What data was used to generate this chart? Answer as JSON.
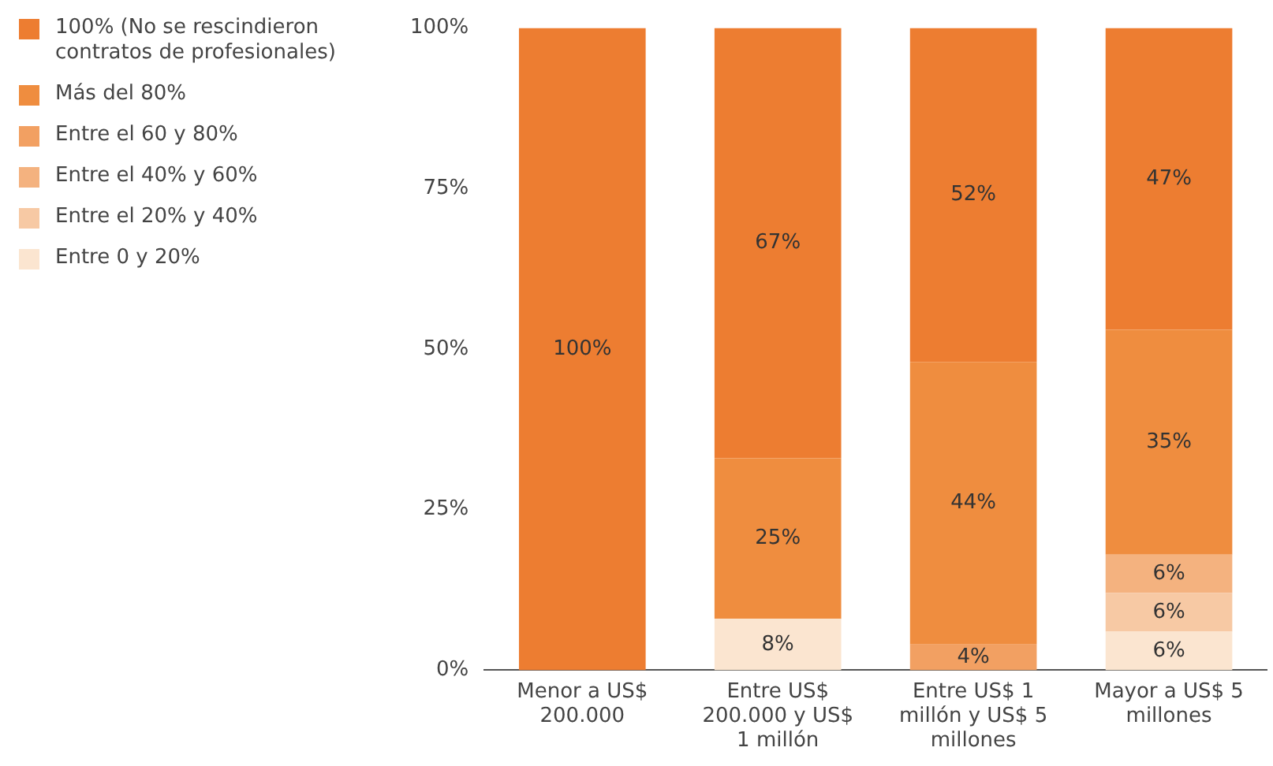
{
  "chart_data": {
    "type": "bar",
    "stacked": true,
    "legend": "left",
    "grid": false,
    "categories": [
      "Menor a US$ 200.000",
      "Entre US$ 200.000 y US$ 1 millón",
      "Entre US$ 1 millón y US$ 5 millones",
      "Mayor a US$ 5 millones"
    ],
    "ylim": [
      0,
      100
    ],
    "yticks": [
      {
        "value": 0,
        "label": "0%"
      },
      {
        "value": 25,
        "label": "25%"
      },
      {
        "value": 50,
        "label": "50%"
      },
      {
        "value": 75,
        "label": "75%"
      },
      {
        "value": 100,
        "label": "100%"
      }
    ],
    "series": [
      {
        "name": "Entre 0 y 20%",
        "color": "#fbe5d0",
        "values": [
          null,
          8,
          null,
          6
        ],
        "value_labels": [
          null,
          "8%",
          null,
          "6%"
        ]
      },
      {
        "name": "Entre el 20% y 40%",
        "color": "#f7c9a4",
        "values": [
          null,
          null,
          null,
          6
        ],
        "value_labels": [
          null,
          null,
          null,
          "6%"
        ]
      },
      {
        "name": "Entre el 40% y 60%",
        "color": "#f4b27f",
        "values": [
          null,
          null,
          null,
          6
        ],
        "value_labels": [
          null,
          null,
          null,
          "6%"
        ]
      },
      {
        "name": "Entre el 60 y 80%",
        "color": "#f2a062",
        "values": [
          null,
          null,
          4,
          null
        ],
        "value_labels": [
          null,
          null,
          "4%",
          null
        ]
      },
      {
        "name": "Más del 80%",
        "color": "#ef8d3f",
        "values": [
          null,
          25,
          44,
          35
        ],
        "value_labels": [
          null,
          "25%",
          "44%",
          "35%"
        ]
      },
      {
        "name": "100% (No se rescindieron contratos de profesionales)",
        "color": "#ed7d31",
        "values": [
          100,
          67,
          52,
          47
        ],
        "value_labels": [
          "100%",
          "67%",
          "52%",
          "47%"
        ]
      }
    ]
  }
}
